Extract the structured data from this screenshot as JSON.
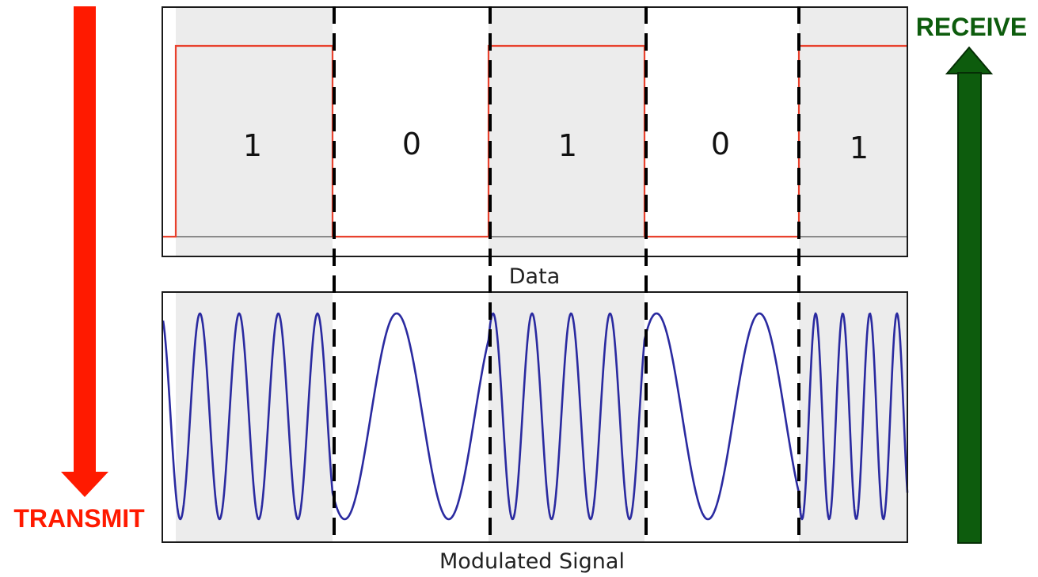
{
  "data_panel": {
    "caption": "Data",
    "bits": [
      "1",
      "0",
      "1",
      "0",
      "1"
    ]
  },
  "signal_panel": {
    "caption": "Modulated Signal",
    "cycles_per_bit": {
      "1": 4,
      "0": 1.5
    }
  },
  "transmit": {
    "label": "TRANSMIT",
    "color": "#ff1a00"
  },
  "receive": {
    "label": "RECEIVE",
    "color": "#0d5c0d"
  },
  "colors": {
    "data_line": "#e8412d",
    "baseline": "#8a8a8a",
    "signal_line": "#2a2aa0",
    "bit_one_shading": "#ececec",
    "panel_border": "#1a1a1a",
    "divider": "#000000"
  }
}
